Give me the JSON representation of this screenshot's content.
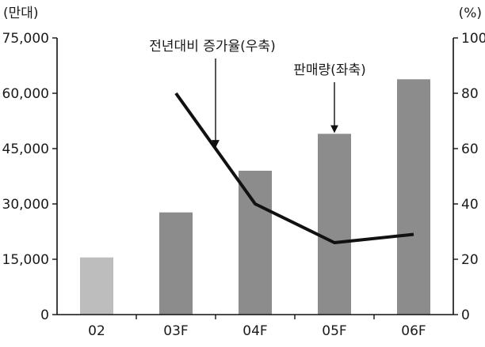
{
  "chart_data": {
    "type": "bar",
    "categories": [
      "02",
      "03F",
      "04F",
      "05F",
      "06F"
    ],
    "series": [
      {
        "name": "판매량",
        "axis": "left",
        "type": "bar",
        "values": [
          15500,
          27700,
          39000,
          49000,
          63800
        ],
        "colors": [
          "#bdbdbd",
          "#8c8c8c",
          "#8c8c8c",
          "#8c8c8c",
          "#8c8c8c"
        ]
      },
      {
        "name": "전년대비 증가율",
        "axis": "right",
        "type": "line",
        "values": [
          null,
          80,
          40,
          26,
          29
        ],
        "color": "#111111"
      }
    ],
    "left_axis": {
      "unit": "(만대)",
      "ylim": [
        0,
        75000
      ],
      "ticks": [
        0,
        15000,
        30000,
        45000,
        60000,
        75000
      ],
      "tick_labels": [
        "0",
        "15,000",
        "30,000",
        "45,000",
        "60,000",
        "75,000"
      ]
    },
    "right_axis": {
      "unit": "(%)",
      "ylim": [
        0,
        100
      ],
      "ticks": [
        0,
        20,
        40,
        60,
        80,
        100
      ],
      "tick_labels": [
        "0",
        "20",
        "40",
        "60",
        "80",
        "100"
      ]
    },
    "annotations": [
      {
        "text": "전년대비 증가율(우축)",
        "target_series": 1,
        "target_category": 1.5,
        "target_value_axis": "right",
        "target_value": 60
      },
      {
        "text": "판매량(좌축)",
        "target_series": 0,
        "target_category": 3,
        "target_value_axis": "left",
        "target_value": 49000
      }
    ],
    "grid": false,
    "legend": "none"
  }
}
